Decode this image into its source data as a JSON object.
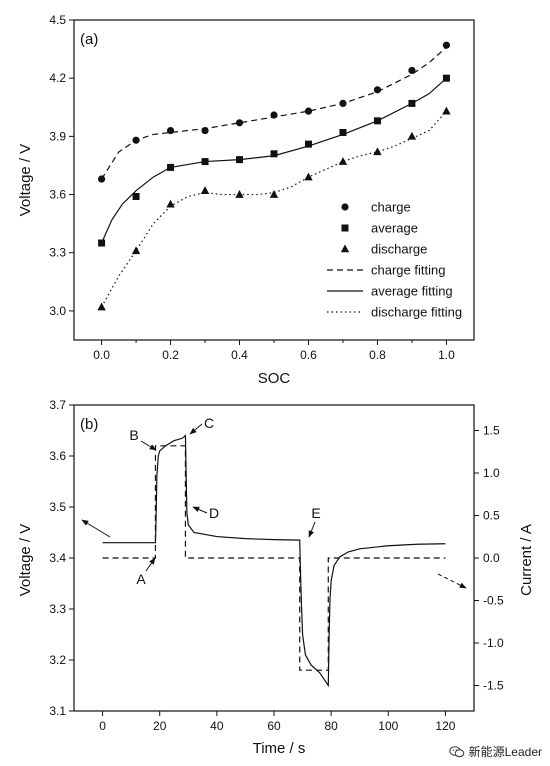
{
  "chart_data": [
    {
      "type": "scatter",
      "panel_label": "(a)",
      "xlabel": "SOC",
      "ylabel": "Voltage / V",
      "xlim": [
        -0.08,
        1.08
      ],
      "ylim": [
        2.85,
        4.5
      ],
      "xticks": [
        "0.0",
        "0.2",
        "0.4",
        "0.6",
        "0.8",
        "1.0"
      ],
      "yticks": [
        "3.0",
        "3.3",
        "3.6",
        "3.9",
        "4.2",
        "4.5"
      ],
      "legend_position": "bottom-right",
      "series": [
        {
          "name": "charge",
          "marker": "circle",
          "x": [
            0.0,
            0.1,
            0.2,
            0.3,
            0.4,
            0.5,
            0.6,
            0.7,
            0.8,
            0.9,
            1.0
          ],
          "y": [
            3.68,
            3.88,
            3.93,
            3.93,
            3.97,
            4.01,
            4.03,
            4.07,
            4.14,
            4.24,
            4.37
          ]
        },
        {
          "name": "average",
          "marker": "square",
          "x": [
            0.0,
            0.1,
            0.2,
            0.3,
            0.4,
            0.5,
            0.6,
            0.7,
            0.8,
            0.9,
            1.0
          ],
          "y": [
            3.35,
            3.59,
            3.74,
            3.77,
            3.78,
            3.81,
            3.86,
            3.92,
            3.98,
            4.07,
            4.2
          ]
        },
        {
          "name": "discharge",
          "marker": "triangle",
          "x": [
            0.0,
            0.1,
            0.2,
            0.3,
            0.4,
            0.5,
            0.6,
            0.7,
            0.8,
            0.9,
            1.0
          ],
          "y": [
            3.02,
            3.31,
            3.55,
            3.62,
            3.6,
            3.6,
            3.69,
            3.77,
            3.82,
            3.9,
            4.03
          ]
        },
        {
          "name": "charge fitting",
          "line": "dashed",
          "x": [
            0.0,
            0.05,
            0.1,
            0.15,
            0.2,
            0.3,
            0.4,
            0.5,
            0.6,
            0.7,
            0.8,
            0.9,
            0.95,
            1.0
          ],
          "y": [
            3.68,
            3.82,
            3.88,
            3.91,
            3.92,
            3.94,
            3.97,
            4.0,
            4.03,
            4.07,
            4.13,
            4.22,
            4.28,
            4.36
          ]
        },
        {
          "name": "average fitting",
          "line": "solid",
          "x": [
            0.0,
            0.03,
            0.06,
            0.1,
            0.15,
            0.2,
            0.3,
            0.4,
            0.5,
            0.6,
            0.7,
            0.8,
            0.9,
            0.95,
            1.0
          ],
          "y": [
            3.35,
            3.47,
            3.55,
            3.62,
            3.69,
            3.74,
            3.77,
            3.78,
            3.8,
            3.85,
            3.91,
            3.98,
            4.07,
            4.12,
            4.2
          ]
        },
        {
          "name": "discharge fitting",
          "line": "dotted",
          "x": [
            0.0,
            0.05,
            0.1,
            0.15,
            0.2,
            0.25,
            0.3,
            0.35,
            0.4,
            0.45,
            0.5,
            0.55,
            0.6,
            0.65,
            0.7,
            0.75,
            0.8,
            0.85,
            0.9,
            0.95,
            1.0
          ],
          "y": [
            3.02,
            3.18,
            3.31,
            3.45,
            3.54,
            3.59,
            3.61,
            3.6,
            3.6,
            3.6,
            3.61,
            3.64,
            3.69,
            3.73,
            3.77,
            3.8,
            3.82,
            3.85,
            3.89,
            3.93,
            4.03
          ]
        }
      ]
    },
    {
      "type": "line",
      "panel_label": "(b)",
      "xlabel": "Time / s",
      "ylabel": "Voltage / V",
      "y2label": "Current / A",
      "xlim": [
        -10,
        130
      ],
      "ylim": [
        3.1,
        3.7
      ],
      "y2lim": [
        -1.8,
        1.8
      ],
      "xticks": [
        "0",
        "20",
        "40",
        "60",
        "80",
        "100",
        "120"
      ],
      "yticks": [
        "3.1",
        "3.2",
        "3.3",
        "3.4",
        "3.5",
        "3.6",
        "3.7"
      ],
      "y2ticks": [
        "-1.5",
        "-1.0",
        "-0.5",
        "0.0",
        "0.5",
        "1.0",
        "1.5"
      ],
      "series": [
        {
          "axis": "left",
          "line": "solid",
          "x": [
            0,
            18.5,
            18.7,
            19,
            19.5,
            20,
            22,
            25,
            28,
            29,
            29.2,
            29.5,
            30,
            32,
            40,
            50,
            60,
            69,
            69.2,
            69.6,
            70,
            71,
            73,
            76,
            79,
            79.3,
            79.6,
            80,
            81,
            83,
            86,
            90,
            100,
            110,
            120
          ],
          "y": [
            3.43,
            3.43,
            3.47,
            3.56,
            3.6,
            3.61,
            3.62,
            3.63,
            3.635,
            3.64,
            3.58,
            3.49,
            3.465,
            3.45,
            3.442,
            3.438,
            3.436,
            3.435,
            3.39,
            3.31,
            3.25,
            3.21,
            3.19,
            3.175,
            3.15,
            3.25,
            3.32,
            3.355,
            3.385,
            3.402,
            3.412,
            3.418,
            3.424,
            3.427,
            3.428
          ]
        },
        {
          "axis": "right",
          "line": "dashed",
          "x": [
            0,
            18.5,
            18.5,
            29,
            29,
            69,
            69,
            79,
            79,
            120
          ],
          "y": [
            0,
            0,
            1.32,
            1.32,
            0,
            0,
            -1.32,
            -1.32,
            0,
            0
          ]
        }
      ],
      "annotations": [
        {
          "label": "A",
          "x": 18.5
        },
        {
          "label": "B",
          "x": 19.5
        },
        {
          "label": "C",
          "x": 29
        },
        {
          "label": "D",
          "x": 29.5
        },
        {
          "label": "E",
          "x": 69
        }
      ]
    }
  ],
  "watermark": {
    "text": "新能源Leader",
    "icon": "wechat-icon"
  }
}
